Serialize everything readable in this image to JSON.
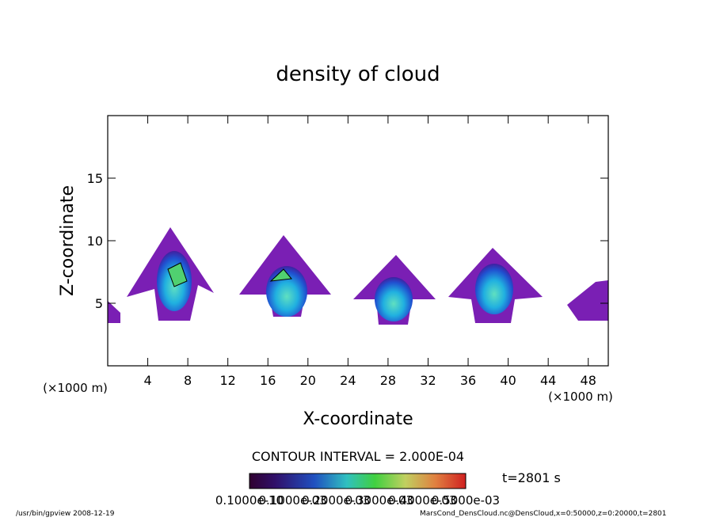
{
  "chart_data": {
    "type": "contour",
    "title": "density of cloud",
    "xlabel": "X-coordinate",
    "ylabel": "Z-coordinate",
    "x_unit": "(×1000 m)",
    "y_unit": "(×1000 m)",
    "xlim": [
      0,
      50
    ],
    "xticks": [
      4,
      8,
      12,
      16,
      20,
      24,
      28,
      32,
      36,
      40,
      44,
      48
    ],
    "ylim": [
      0,
      20
    ],
    "yticks": [
      5,
      10,
      15
    ],
    "contour_interval": "CONTOUR INTERVAL = 2.000E-04",
    "time_label": "t=2801 s",
    "colorbar_labels": [
      "0.1000e-10",
      "0.1000e-03",
      "0.2000e-03",
      "0.3000e-03",
      "0.4000e-03",
      "0.5000e-03"
    ],
    "footer_left": "/usr/bin/gpview   2008-12-19",
    "footer_right": "MarsCond_DensCloud.nc@DensCloud,x=0:50000,z=0:20000,t=2801"
  }
}
